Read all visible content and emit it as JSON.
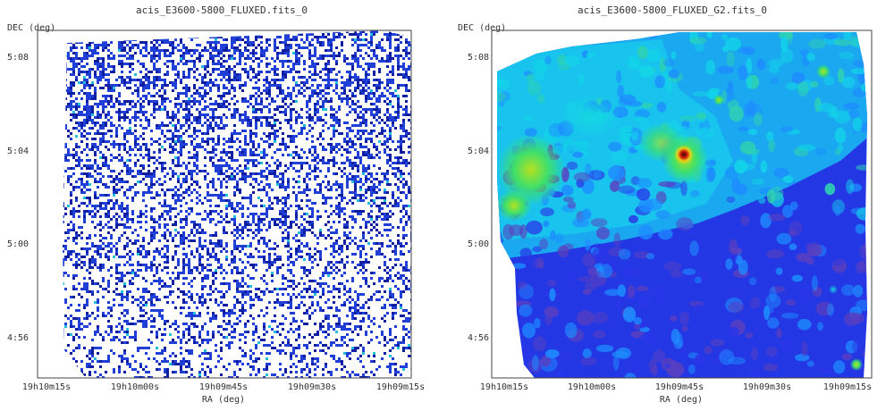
{
  "chart_data": [
    {
      "type": "heatmap",
      "title": "acis_E3600-5800_FLUXED.fits_0",
      "xlabel": "RA (deg)",
      "ylabel": "DEC (deg)",
      "x_ticks": [
        "19h10m15s",
        "19h10m00s",
        "19h09m45s",
        "19h09m30s",
        "19h09m15s"
      ],
      "y_ticks": [
        "5:08",
        "5:04",
        "5:00",
        "4:56"
      ],
      "colormap": "sparse counts, white background with blue pixels",
      "colors": {
        "background": "#ffffff",
        "pixel": "#1f3fd6",
        "pixel_dark": "#0d1fa0",
        "hot": "#22c0d8"
      },
      "grid": false
    },
    {
      "type": "heatmap",
      "title": "acis_E3600-5800_FLUXED_G2.fits_0",
      "xlabel": "RA (deg)",
      "ylabel": "DEC (deg)",
      "x_ticks": [
        "19h10m15s",
        "19h10m00s",
        "19h09m45s",
        "19h09m30s",
        "19h09m15s"
      ],
      "y_ticks": [
        "5:08",
        "5:04",
        "5:00",
        "4:56"
      ],
      "colormap": "smoothed, blue-cyan-green-yellow-red",
      "colors": {
        "low": "#2a36e8",
        "lowmid": "#1e8cff",
        "mid": "#12d4e8",
        "high": "#3fe06a",
        "higher": "#d8e020",
        "peak": "#d41c10"
      },
      "grid": false
    }
  ]
}
